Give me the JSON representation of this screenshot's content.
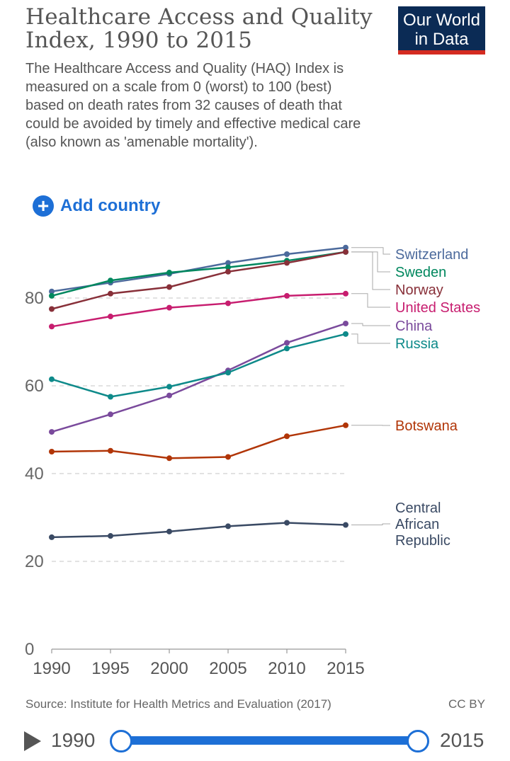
{
  "header": {
    "title": "Healthcare Access and Quality Index, 1990 to 2015",
    "subtitle": "The Healthcare Access and Quality (HAQ) Index is measured on a scale from 0 (worst) to 100 (best) based on death rates from 32 causes of death that could be avoided by timely and effective medical care (also known as 'amenable mortality').",
    "logo_line1": "Our World",
    "logo_line2": "in Data"
  },
  "controls": {
    "add_country_label": "Add country"
  },
  "footer": {
    "source": "Source: Institute for Health Metrics and Evaluation (2017)",
    "license": "CC BY"
  },
  "timeline": {
    "start_year": "1990",
    "end_year": "2015"
  },
  "chart_data": {
    "type": "line",
    "title": "Healthcare Access and Quality Index, 1990 to 2015",
    "x": [
      1990,
      1995,
      2000,
      2005,
      2010,
      2015
    ],
    "xticks": [
      1990,
      1995,
      2000,
      2005,
      2010,
      2015
    ],
    "yticks": [
      0,
      20,
      40,
      60,
      80
    ],
    "xlim": [
      1990,
      2015
    ],
    "ylim": [
      0,
      100
    ],
    "grid": "horizontal-dashed",
    "legend": "right-end-labels",
    "series": [
      {
        "name": "Switzerland",
        "color": "#4c6a9c",
        "values": [
          81.5,
          83.5,
          85.5,
          88.0,
          90.0,
          91.5
        ]
      },
      {
        "name": "Sweden",
        "color": "#00875e",
        "values": [
          80.5,
          84.0,
          85.8,
          87.0,
          88.5,
          90.5
        ]
      },
      {
        "name": "Norway",
        "color": "#883039",
        "values": [
          77.5,
          81.0,
          82.5,
          86.0,
          88.0,
          90.5
        ]
      },
      {
        "name": "United States",
        "color": "#c71d6f",
        "values": [
          73.5,
          75.8,
          77.8,
          78.8,
          80.5,
          81.0
        ]
      },
      {
        "name": "China",
        "color": "#7a4a9c",
        "values": [
          49.5,
          53.5,
          57.8,
          63.5,
          69.8,
          74.2
        ]
      },
      {
        "name": "Russia",
        "color": "#0e8a8a",
        "values": [
          61.5,
          57.5,
          59.8,
          63.0,
          68.5,
          71.8
        ]
      },
      {
        "name": "Botswana",
        "color": "#b13507",
        "values": [
          45.0,
          45.2,
          43.5,
          43.8,
          48.5,
          51.0
        ]
      },
      {
        "name": "Central African Republic",
        "color": "#3a4a64",
        "values": [
          25.5,
          25.8,
          26.8,
          28.0,
          28.8,
          28.3
        ]
      }
    ],
    "labels": [
      {
        "series": "Switzerland",
        "lines": [
          "Switzerland"
        ]
      },
      {
        "series": "Sweden",
        "lines": [
          "Sweden"
        ]
      },
      {
        "series": "Norway",
        "lines": [
          "Norway"
        ]
      },
      {
        "series": "United States",
        "lines": [
          "United States"
        ]
      },
      {
        "series": "China",
        "lines": [
          "China"
        ]
      },
      {
        "series": "Russia",
        "lines": [
          "Russia"
        ]
      },
      {
        "series": "Botswana",
        "lines": [
          "Botswana"
        ]
      },
      {
        "series": "Central African Republic",
        "lines": [
          "Central",
          "African",
          "Republic"
        ]
      }
    ]
  }
}
